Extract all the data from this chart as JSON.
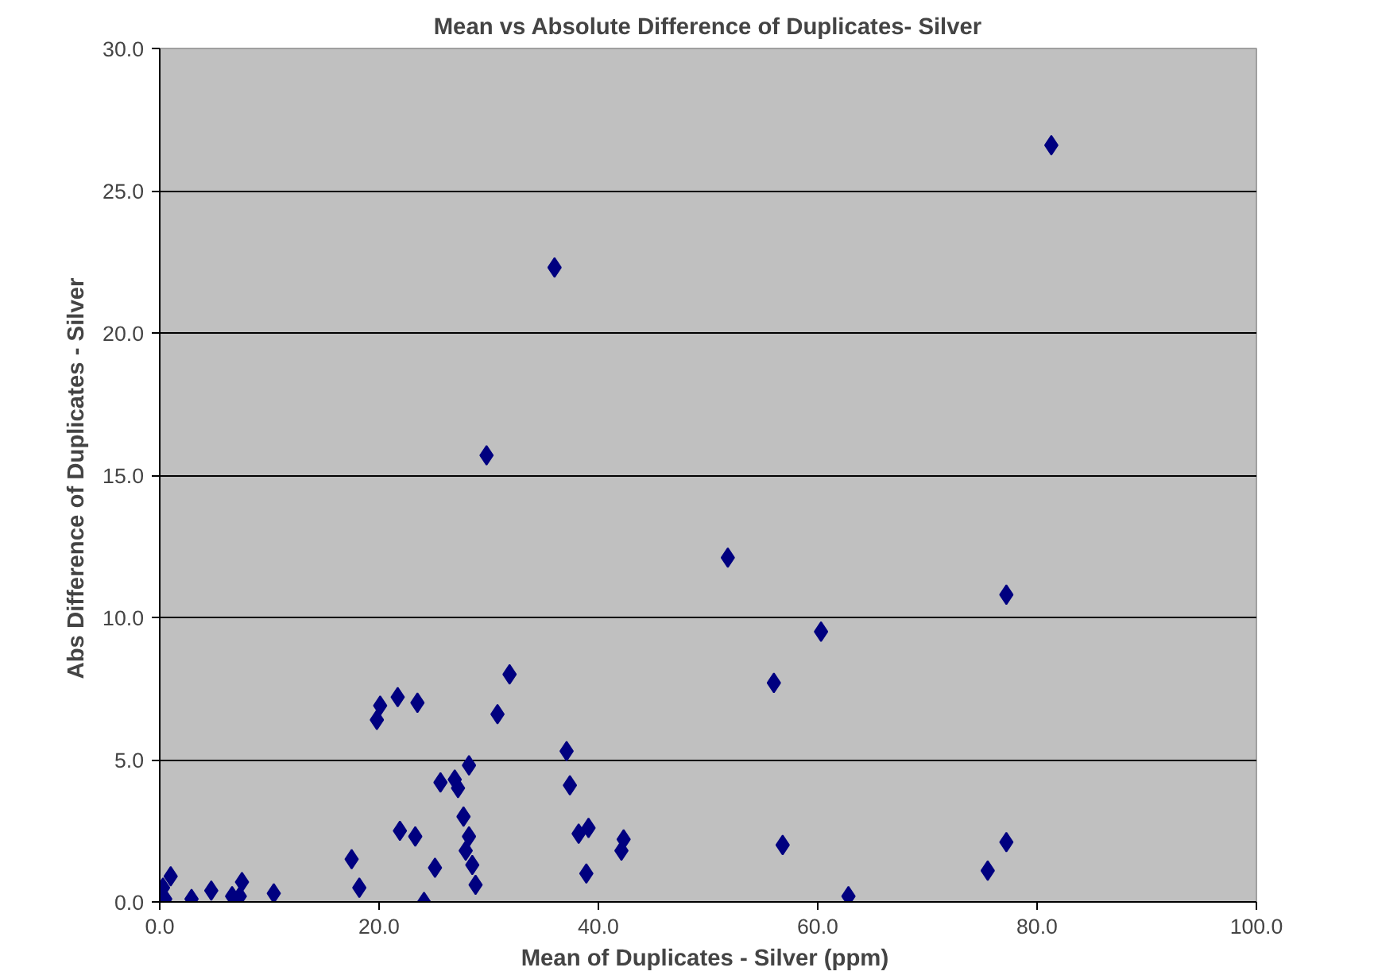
{
  "chart_data": {
    "type": "scatter",
    "title": "Mean vs Absolute Difference of Duplicates- Silver",
    "xlabel": "Mean of Duplicates  - Silver (ppm)",
    "ylabel": "Abs Difference of Duplicates  - Silver",
    "x": [
      0.3,
      1.0,
      0.5,
      2.9,
      4.7,
      6.6,
      7.5,
      7.3,
      10.4,
      17.5,
      18.2,
      19.8,
      20.1,
      21.7,
      21.9,
      23.3,
      23.5,
      24.1,
      25.1,
      25.6,
      26.9,
      27.2,
      28.2,
      27.7,
      28.2,
      27.9,
      28.5,
      28.8,
      30.8,
      31.9,
      36.0,
      29.8,
      37.1,
      37.4,
      38.2,
      39.1,
      38.9,
      42.1,
      42.3,
      51.8,
      56.0,
      56.8,
      60.3,
      62.8,
      75.5,
      77.2,
      77.2,
      81.3
    ],
    "series": [
      {
        "color": "#000080",
        "values": [
          0.5,
          0.9,
          0.1,
          0.1,
          0.4,
          0.2,
          0.7,
          0.2,
          0.3,
          1.5,
          0.5,
          6.4,
          6.9,
          7.2,
          2.5,
          2.3,
          7.0,
          0.0,
          1.2,
          4.2,
          4.3,
          4.0,
          4.8,
          3.0,
          2.3,
          1.8,
          1.3,
          0.6,
          6.6,
          8.0,
          22.3,
          15.7,
          5.3,
          4.1,
          2.4,
          2.6,
          1.0,
          1.8,
          2.2,
          12.1,
          7.7,
          2.0,
          9.5,
          0.2,
          1.1,
          2.1,
          10.8,
          26.6
        ]
      }
    ],
    "xlim": [
      0,
      100
    ],
    "ylim": [
      0,
      30
    ],
    "xticks": [
      {
        "value": 0,
        "label": "0.0"
      },
      {
        "value": 20,
        "label": "20.0"
      },
      {
        "value": 40,
        "label": "40.0"
      },
      {
        "value": 60,
        "label": "60.0"
      },
      {
        "value": 80,
        "label": "80.0"
      },
      {
        "value": 100,
        "label": "100.0"
      }
    ],
    "yticks": [
      {
        "value": 0,
        "label": "0.0"
      },
      {
        "value": 5,
        "label": "5.0"
      },
      {
        "value": 10,
        "label": "10.0"
      },
      {
        "value": 15,
        "label": "15.0"
      },
      {
        "value": 20,
        "label": "20.0"
      },
      {
        "value": 25,
        "label": "25.0"
      },
      {
        "value": 30,
        "label": "30.0"
      }
    ],
    "grid": "y",
    "marker": "diamond"
  }
}
